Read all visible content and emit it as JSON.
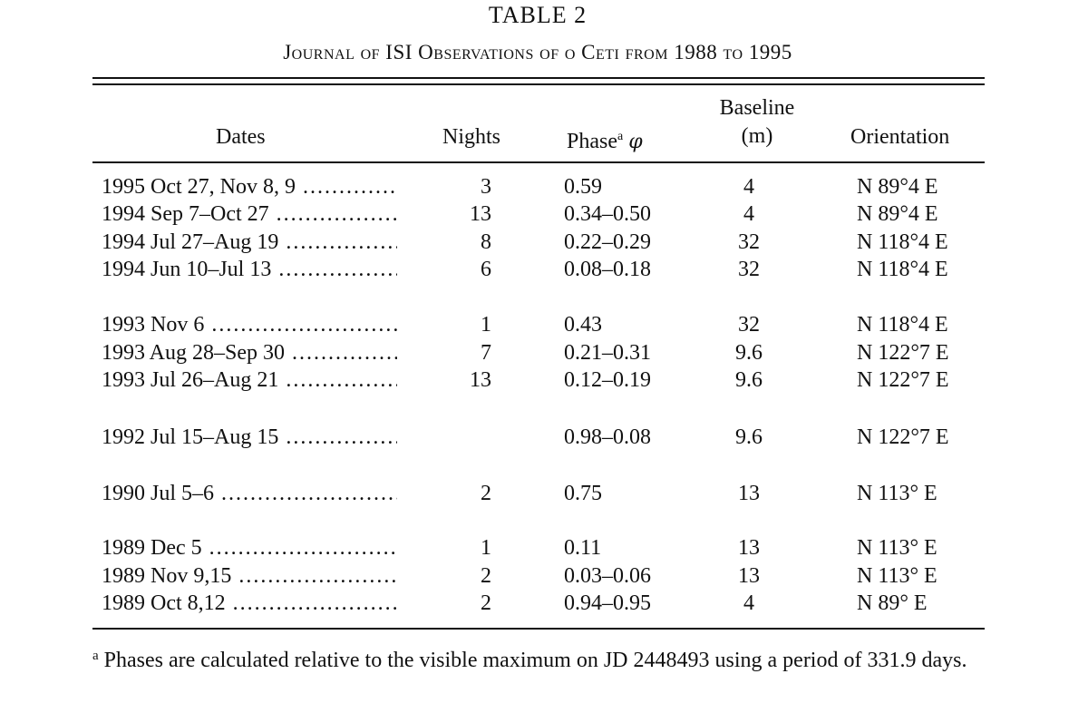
{
  "table": {
    "title": "TABLE 2",
    "subtitle": "Journal of ISI Observations of o Ceti from 1988 to 1995",
    "headers": {
      "dates": "Dates",
      "nights": "Nights",
      "phase": "Phase",
      "phase_mark": "a",
      "phase_symbol": "φ",
      "baseline_line1": "Baseline",
      "baseline_line2": "(m)",
      "orientation": "Orientation"
    },
    "rows": [
      {
        "date": "1995 Oct 27, Nov 8, 9",
        "nights": "3",
        "phase": "0.59",
        "baseline": "4",
        "orientation": "N 89°4 E"
      },
      {
        "date": "1994 Sep 7–Oct 27",
        "nights": "13",
        "phase": "0.34–0.50",
        "baseline": "4",
        "orientation": "N 89°4 E"
      },
      {
        "date": "1994 Jul 27–Aug 19",
        "nights": "8",
        "phase": "0.22–0.29",
        "baseline": "32",
        "orientation": "N 118°4 E"
      },
      {
        "date": "1994 Jun 10–Jul 13",
        "nights": "6",
        "phase": "0.08–0.18",
        "baseline": "32",
        "orientation": "N 118°4 E"
      },
      {
        "date": "1993 Nov 6",
        "nights": "1",
        "phase": "0.43",
        "baseline": "32",
        "orientation": "N 118°4 E"
      },
      {
        "date": "1993 Aug 28–Sep 30",
        "nights": "7",
        "phase": "0.21–0.31",
        "baseline": "9.6",
        "orientation": "N 122°7 E"
      },
      {
        "date": "1993 Jul 26–Aug 21",
        "nights": "13",
        "phase": "0.12–0.19",
        "baseline": "9.6",
        "orientation": "N 122°7 E"
      },
      {
        "date": "1992 Jul 15–Aug 15",
        "nights": "",
        "phase": "0.98–0.08",
        "baseline": "9.6",
        "orientation": "N 122°7 E"
      },
      {
        "date": "1990 Jul 5–6",
        "nights": "2",
        "phase": "0.75",
        "baseline": "13",
        "orientation": "N 113° E"
      },
      {
        "date": "1989 Dec 5",
        "nights": "1",
        "phase": "0.11",
        "baseline": "13",
        "orientation": "N 113° E"
      },
      {
        "date": "1989 Nov 9,15",
        "nights": "2",
        "phase": "0.03–0.06",
        "baseline": "13",
        "orientation": "N 113° E"
      },
      {
        "date": "1989 Oct 8,12",
        "nights": "2",
        "phase": "0.94–0.95",
        "baseline": "4",
        "orientation": "N 89° E"
      }
    ],
    "footnote_mark": "a",
    "footnote": "Phases are calculated relative to the visible maximum on JD 2448493 using a period of 331.9 days."
  }
}
